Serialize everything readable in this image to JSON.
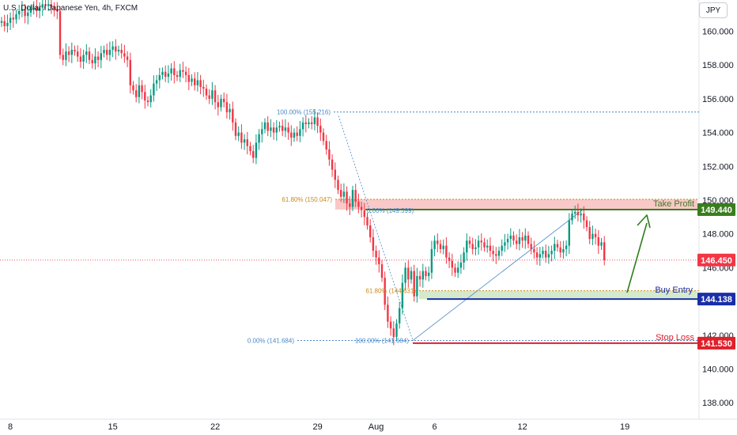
{
  "header": {
    "symbol_title": "U.S. Dollar / Japanese Yen, 4h, FXCM",
    "currency_button": "JPY"
  },
  "colors": {
    "up": "#089981",
    "down": "#f23645",
    "take_profit": "#3a7d1e",
    "buy_entry": "#1a2ea8",
    "stop_loss": "#e0202a",
    "current_price": "#f23645",
    "fib_blue": "#4a89c8",
    "fib_orange": "#c9881e"
  },
  "chart_data": {
    "type": "candlestick",
    "y_axis": {
      "ticks": [
        138,
        140,
        142,
        144,
        146,
        148,
        150,
        152,
        154,
        156,
        158,
        160
      ],
      "tick_labels": [
        "138.000",
        "140.000",
        "142.000",
        "144.000",
        "146.000",
        "148.000",
        "150.000",
        "152.000",
        "154.000",
        "156.000",
        "158.000",
        "160.000"
      ],
      "range": [
        137.1,
        161.8
      ]
    },
    "x_axis": {
      "ticks": [
        {
          "label": "8",
          "bar": 3
        },
        {
          "label": "15",
          "bar": 38
        },
        {
          "label": "22",
          "bar": 73
        },
        {
          "label": "29",
          "bar": 108
        },
        {
          "label": "Aug",
          "bar": 128
        },
        {
          "label": "6",
          "bar": 148
        },
        {
          "label": "12",
          "bar": 178
        },
        {
          "label": "19",
          "bar": 213
        }
      ]
    },
    "closes": [
      160.6,
      160.3,
      160.5,
      160.8,
      160.7,
      161.0,
      161.2,
      161.3,
      160.9,
      161.1,
      161.3,
      161.4,
      161.2,
      161.4,
      161.6,
      161.5,
      161.6,
      161.4,
      161.3,
      161.2,
      158.6,
      158.3,
      158.8,
      158.6,
      158.9,
      158.8,
      158.5,
      158.2,
      158.6,
      158.8,
      158.3,
      158.1,
      158.5,
      158.3,
      158.7,
      158.9,
      158.6,
      158.9,
      159.1,
      158.8,
      158.9,
      158.7,
      158.5,
      158.3,
      156.8,
      156.5,
      156.1,
      156.8,
      156.4,
      155.9,
      155.8,
      156.2,
      156.9,
      157.1,
      157.4,
      157.6,
      157.3,
      157.5,
      157.8,
      157.4,
      157.3,
      157.7,
      157.6,
      157.4,
      157.0,
      157.2,
      156.8,
      157.1,
      156.7,
      156.6,
      156.2,
      156.0,
      156.5,
      155.8,
      155.5,
      156.0,
      155.8,
      155.2,
      155.4,
      154.6,
      153.8,
      154.0,
      153.4,
      153.6,
      153.2,
      152.9,
      152.5,
      153.4,
      153.9,
      154.2,
      154.6,
      154.1,
      154.3,
      154.0,
      154.3,
      154.4,
      154.1,
      154.3,
      154.0,
      153.7,
      154.0,
      153.8,
      154.2,
      154.6,
      154.5,
      154.6,
      154.5,
      154.9,
      154.4,
      154.0,
      153.5,
      153.0,
      152.4,
      151.8,
      151.2,
      150.6,
      150.2,
      150.5,
      149.8,
      149.6,
      150.6,
      149.9,
      149.6,
      149.4,
      149.0,
      148.5,
      147.8,
      147.0,
      146.6,
      146.2,
      145.4,
      143.8,
      142.8,
      142.4,
      141.9,
      142.7,
      143.6,
      145.1,
      146.0,
      145.3,
      145.8,
      144.3,
      145.5,
      145.3,
      145.8,
      145.5,
      145.7,
      147.1,
      147.6,
      147.4,
      147.1,
      147.3,
      146.6,
      146.4,
      146.0,
      145.7,
      146.0,
      146.3,
      146.9,
      147.6,
      147.4,
      147.1,
      147.2,
      147.6,
      147.5,
      147.2,
      147.3,
      147.0,
      146.8,
      146.7,
      147.0,
      147.3,
      147.5,
      147.7,
      147.9,
      147.6,
      147.4,
      147.8,
      147.6,
      147.9,
      147.4,
      147.1,
      146.9,
      146.6,
      146.8,
      147.0,
      146.6,
      146.8,
      147.0,
      147.4,
      147.2,
      146.9,
      147.1,
      147.3,
      148.8,
      149.2,
      149.3,
      149.1,
      149.2,
      148.8,
      148.4,
      147.7,
      148.0,
      147.8,
      147.3,
      147.5,
      146.45
    ],
    "price_levels": [
      {
        "name": "Take Profit",
        "value": 149.44,
        "label": "149.440",
        "color": "#3a7d1e"
      },
      {
        "name": "Buy Entry",
        "value": 144.138,
        "label": "144.138",
        "color": "#1a2ea8"
      },
      {
        "name": "Stop Loss",
        "value": 141.53,
        "label": "141.530",
        "color": "#e0202a"
      }
    ],
    "current_price": {
      "value": 146.45,
      "label": "146.450"
    },
    "fib_labels": [
      {
        "text": "100.00% (155.216)",
        "value": 155.216,
        "color": "#4a89c8"
      },
      {
        "text": "61.80% (150.047)",
        "value": 150.047,
        "color": "#c9881e"
      },
      {
        "text": "0.00% (141.684)",
        "value": 141.684,
        "color": "#4a89c8"
      },
      {
        "text": "61.80% (144.631)",
        "value": 144.631,
        "color": "#c9881e"
      },
      {
        "text": "100.00% (141.684)",
        "value": 141.684,
        "color": "#4a89c8"
      },
      {
        "text": "0.00% (149.399)",
        "value": 149.399,
        "color": "#4a89c8"
      }
    ],
    "zones": [
      {
        "name": "take-profit-zone",
        "from": 149.44,
        "to": 150.047,
        "color": "#f7b6b6"
      },
      {
        "name": "buy-entry-zone",
        "from": 144.138,
        "to": 144.631,
        "color": "#cfe8c4"
      }
    ]
  }
}
